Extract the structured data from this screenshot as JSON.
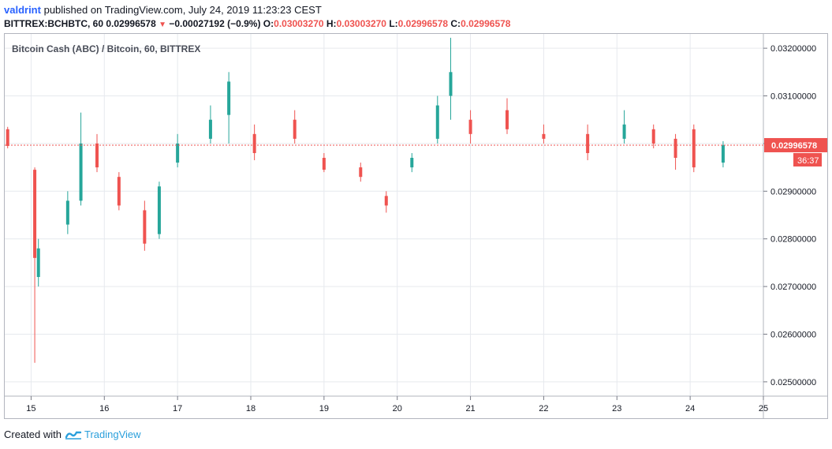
{
  "header": {
    "publisher": "valdrint",
    "published_text": "published on TradingView.com, July 24, 2019 11:23:23 CEST",
    "symbol": "BITTREX:BCHBTC, 60",
    "last": "0.02996578",
    "change": "−0.00027192 (−0.9%)",
    "o_label": "O:",
    "o_value": "0.03003270",
    "h_label": "H:",
    "h_value": "0.03003270",
    "l_label": "L:",
    "l_value": "0.02996578",
    "c_label": "C:",
    "c_value": "0.02996578",
    "down_icon": "triangle-down-icon"
  },
  "footer": {
    "created_with": "Created with",
    "brand": "TradingView",
    "logo_icon": "tradingview-logo-icon"
  },
  "chart_data": {
    "type": "candlestick",
    "title": "Bitcoin Cash (ABC) / Bitcoin, 60, BITTREX",
    "timeframe": "60",
    "ylim": [
      0.0247,
      0.0323
    ],
    "y_ticks": [
      "0.03200000",
      "0.03100000",
      "0.03000000",
      "0.02900000",
      "0.02800000",
      "0.02700000",
      "0.02600000",
      "0.02500000"
    ],
    "y_tick_values": [
      0.032,
      0.031,
      0.03,
      0.029,
      0.028,
      0.027,
      0.026,
      0.025
    ],
    "x_ticks": [
      "15",
      "16",
      "17",
      "18",
      "19",
      "20",
      "21",
      "22",
      "23",
      "24",
      "25"
    ],
    "x_tick_days": [
      15,
      16,
      17,
      18,
      19,
      20,
      21,
      22,
      23,
      24,
      25
    ],
    "xlim_days": [
      14.64,
      25.0
    ],
    "last_price": 0.02996578,
    "last_price_label": "0.02996578",
    "countdown_label": "36:37",
    "grid": true,
    "colors": {
      "up": "#26a69a",
      "down": "#ef5350",
      "price_line": "#ef5350",
      "grid": "#e6e9ee",
      "axis_text": "#131722"
    },
    "candles": [
      {
        "t": 14.68,
        "o": 0.0303,
        "h": 0.03035,
        "l": 0.0299,
        "c": 0.02995
      },
      {
        "t": 15.05,
        "o": 0.02945,
        "h": 0.0295,
        "l": 0.0254,
        "c": 0.0276
      },
      {
        "t": 15.1,
        "o": 0.0272,
        "h": 0.028,
        "l": 0.027,
        "c": 0.0278
      },
      {
        "t": 15.5,
        "o": 0.0283,
        "h": 0.029,
        "l": 0.0281,
        "c": 0.0288
      },
      {
        "t": 15.68,
        "o": 0.0288,
        "h": 0.03065,
        "l": 0.0287,
        "c": 0.03
      },
      {
        "t": 15.9,
        "o": 0.03,
        "h": 0.0302,
        "l": 0.0294,
        "c": 0.0295
      },
      {
        "t": 16.2,
        "o": 0.0293,
        "h": 0.0294,
        "l": 0.0286,
        "c": 0.0287
      },
      {
        "t": 16.55,
        "o": 0.0286,
        "h": 0.0288,
        "l": 0.02775,
        "c": 0.0279
      },
      {
        "t": 16.75,
        "o": 0.0281,
        "h": 0.0292,
        "l": 0.028,
        "c": 0.0291
      },
      {
        "t": 17.0,
        "o": 0.0296,
        "h": 0.0302,
        "l": 0.0295,
        "c": 0.03
      },
      {
        "t": 17.45,
        "o": 0.0301,
        "h": 0.0308,
        "l": 0.03,
        "c": 0.0305
      },
      {
        "t": 17.7,
        "o": 0.0306,
        "h": 0.0315,
        "l": 0.03,
        "c": 0.0313
      },
      {
        "t": 18.05,
        "o": 0.0302,
        "h": 0.0304,
        "l": 0.02965,
        "c": 0.0298
      },
      {
        "t": 18.6,
        "o": 0.0305,
        "h": 0.0307,
        "l": 0.03,
        "c": 0.0301
      },
      {
        "t": 19.0,
        "o": 0.0297,
        "h": 0.0298,
        "l": 0.0294,
        "c": 0.02945
      },
      {
        "t": 19.5,
        "o": 0.0295,
        "h": 0.0296,
        "l": 0.0292,
        "c": 0.0293
      },
      {
        "t": 19.85,
        "o": 0.0289,
        "h": 0.029,
        "l": 0.02855,
        "c": 0.0287
      },
      {
        "t": 20.2,
        "o": 0.0295,
        "h": 0.0298,
        "l": 0.0294,
        "c": 0.0297
      },
      {
        "t": 20.55,
        "o": 0.0301,
        "h": 0.031,
        "l": 0.03,
        "c": 0.0308
      },
      {
        "t": 20.73,
        "o": 0.031,
        "h": 0.03222,
        "l": 0.0305,
        "c": 0.0315
      },
      {
        "t": 21.0,
        "o": 0.0305,
        "h": 0.0307,
        "l": 0.03,
        "c": 0.0302
      },
      {
        "t": 21.5,
        "o": 0.0307,
        "h": 0.03095,
        "l": 0.0302,
        "c": 0.0303
      },
      {
        "t": 22.0,
        "o": 0.0302,
        "h": 0.0304,
        "l": 0.03,
        "c": 0.0301
      },
      {
        "t": 22.6,
        "o": 0.0302,
        "h": 0.0304,
        "l": 0.02965,
        "c": 0.0298
      },
      {
        "t": 23.1,
        "o": 0.0301,
        "h": 0.0307,
        "l": 0.03,
        "c": 0.0304
      },
      {
        "t": 23.5,
        "o": 0.0303,
        "h": 0.0304,
        "l": 0.0299,
        "c": 0.03
      },
      {
        "t": 23.8,
        "o": 0.0301,
        "h": 0.0302,
        "l": 0.02945,
        "c": 0.0297
      },
      {
        "t": 24.05,
        "o": 0.0303,
        "h": 0.0304,
        "l": 0.0294,
        "c": 0.0295
      },
      {
        "t": 24.45,
        "o": 0.0296,
        "h": 0.03005,
        "l": 0.0295,
        "c": 0.02997
      }
    ]
  }
}
